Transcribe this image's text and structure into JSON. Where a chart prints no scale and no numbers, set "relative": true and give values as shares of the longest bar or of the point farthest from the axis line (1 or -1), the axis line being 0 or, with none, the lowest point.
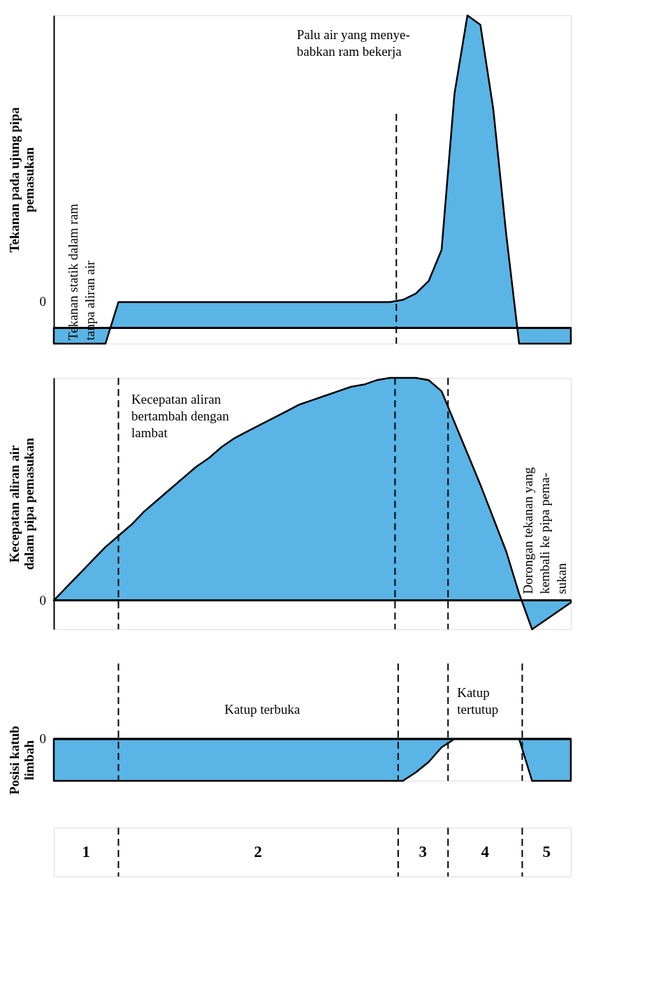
{
  "chart_data": [
    {
      "type": "area",
      "relative": true,
      "ylabel": "Tekanan pada ujung pipa\npemasukan",
      "categories": [
        null,
        null,
        null,
        null,
        null,
        null,
        null,
        null,
        null,
        null,
        null,
        null,
        null,
        null,
        null,
        null,
        null,
        null,
        null,
        null,
        null,
        null,
        null,
        null,
        null,
        null,
        null,
        null,
        null,
        null,
        null,
        null,
        null,
        null,
        null,
        null,
        null,
        null,
        null,
        null,
        null
      ],
      "series": [
        {
          "color": "#5ab4e5",
          "values": [
            -0.05,
            -0.05,
            -0.05,
            -0.05,
            -0.05,
            0.083,
            0.083,
            0.083,
            0.083,
            0.083,
            0.083,
            0.083,
            0.083,
            0.083,
            0.083,
            0.083,
            0.083,
            0.083,
            0.083,
            0.083,
            0.083,
            0.083,
            0.083,
            0.083,
            0.083,
            0.083,
            0.083,
            0.09,
            0.11,
            0.15,
            0.25,
            0.75,
            1.0,
            0.97,
            0.7,
            0.3,
            -0.05,
            -0.05,
            -0.05,
            -0.05,
            -0.05
          ]
        }
      ],
      "annotations": [
        "Palu air yang menye-\nbabkan ram bekerja",
        "Tekanan statik dalam ram\ntanpa aliran air",
        "0"
      ]
    },
    {
      "type": "area",
      "relative": true,
      "ylabel": "Kecepatan aliran air\ndalam pipa pemasukan",
      "categories": [
        null,
        null,
        null,
        null,
        null,
        null,
        null,
        null,
        null,
        null,
        null,
        null,
        null,
        null,
        null,
        null,
        null,
        null,
        null,
        null,
        null,
        null,
        null,
        null,
        null,
        null,
        null,
        null,
        null,
        null,
        null,
        null,
        null,
        null,
        null,
        null,
        null,
        null,
        null,
        null,
        null
      ],
      "series": [
        {
          "color": "#5ab4e5",
          "values": [
            0,
            0.06,
            0.12,
            0.18,
            0.24,
            0.29,
            0.34,
            0.4,
            0.45,
            0.5,
            0.55,
            0.6,
            0.64,
            0.69,
            0.73,
            0.76,
            0.79,
            0.82,
            0.85,
            0.88,
            0.9,
            0.92,
            0.94,
            0.96,
            0.97,
            0.99,
            1.0,
            1.0,
            1.0,
            0.99,
            0.94,
            0.8,
            0.66,
            0.52,
            0.37,
            0.22,
            0.03,
            -0.13,
            -0.09,
            -0.05,
            -0.01
          ]
        }
      ],
      "annotations": [
        "Kecepatan aliran\nbertambah dengan\nlambat",
        "Dorongan tekanan yang\nkembali ke pipa pema-\nsukan",
        "0"
      ]
    },
    {
      "type": "area",
      "relative": true,
      "ylabel": "Posisi katub\nlimbah",
      "categories": [
        null,
        null,
        null,
        null,
        null,
        null,
        null,
        null,
        null,
        null,
        null,
        null,
        null,
        null,
        null,
        null,
        null,
        null,
        null,
        null,
        null,
        null,
        null,
        null,
        null,
        null,
        null,
        null,
        null,
        null,
        null,
        null,
        null,
        null,
        null,
        null,
        null,
        null,
        null,
        null,
        null
      ],
      "series": [
        {
          "color": "#5ab4e5",
          "values": [
            -1,
            -1,
            -1,
            -1,
            -1,
            -1,
            -1,
            -1,
            -1,
            -1,
            -1,
            -1,
            -1,
            -1,
            -1,
            -1,
            -1,
            -1,
            -1,
            -1,
            -1,
            -1,
            -1,
            -1,
            -1,
            -1,
            -1,
            -1,
            -0.8,
            -0.55,
            -0.2,
            0,
            0,
            0,
            0,
            0,
            0,
            -1,
            -1,
            -1,
            -1
          ]
        }
      ],
      "annotations": [
        "Katup terbuka",
        "Katup\ntertutup",
        "0"
      ]
    },
    {
      "type": "other",
      "annotations": [
        "1",
        "2",
        "3",
        "4",
        "5"
      ]
    }
  ]
}
